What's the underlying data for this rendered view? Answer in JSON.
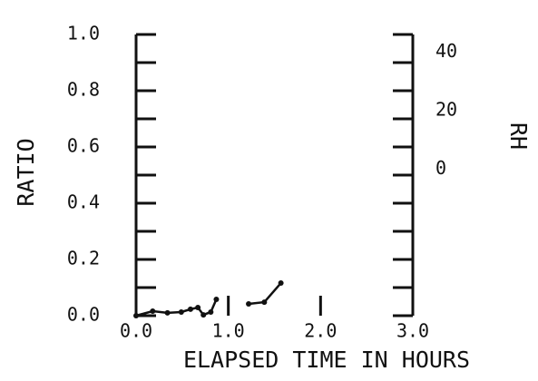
{
  "chart_data": {
    "type": "line",
    "xlabel": "ELAPSED TIME IN HOURS",
    "ylabel": "RATIO",
    "y2label": "RH",
    "x": [
      0,
      0.18,
      0.34,
      0.49,
      0.59,
      0.67,
      0.73,
      0.81,
      0.87,
      null,
      1.22,
      1.39,
      1.57
    ],
    "series": [
      {
        "color": "#111111",
        "values": [
          0,
          0.016,
          0.01,
          0.013,
          0.023,
          0.029,
          0.003,
          0.013,
          0.058,
          null,
          0.042,
          0.048,
          0.116
        ]
      }
    ],
    "xlim": [
      0,
      3
    ],
    "xticks": [
      {
        "value": 0,
        "label": "0.0"
      },
      {
        "value": 1,
        "label": "1.0"
      },
      {
        "value": 2,
        "label": "2.0"
      },
      {
        "value": 3,
        "label": "3.0"
      }
    ],
    "ylim": [
      0,
      1
    ],
    "yticks": [
      {
        "value": 0,
        "label": "0.0"
      },
      0.2,
      0.4,
      0.6,
      0.8,
      {
        "value": 1,
        "label": "1.0"
      }
    ],
    "y2lim": [
      -50,
      46
    ],
    "y2ticks": [
      0,
      20,
      40
    ]
  }
}
